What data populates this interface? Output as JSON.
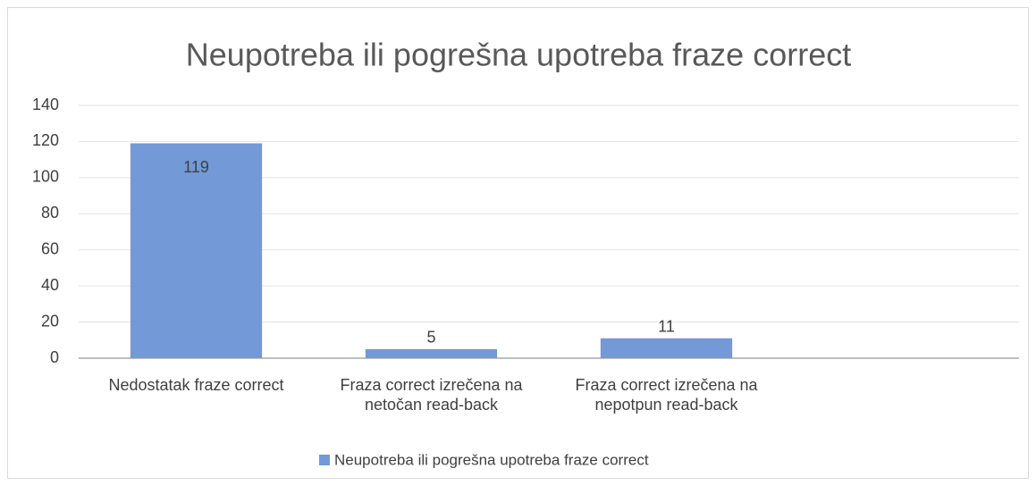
{
  "chart_data": {
    "type": "bar",
    "title": "Neupotreba ili pogrešna upotreba fraze correct",
    "categories": [
      "Nedostatak fraze correct",
      "Fraza correct izrečena na netočan read-back",
      "Fraza correct izrečena na nepotpun read-back",
      null
    ],
    "series": [
      {
        "name": "Neupotreba ili pogrešna upotreba fraze correct",
        "color": "#7399d6",
        "values": [
          119,
          5,
          11,
          null
        ]
      }
    ],
    "ylim": [
      0,
      140
    ],
    "yticks": [
      0,
      20,
      40,
      60,
      80,
      100,
      120,
      140
    ],
    "grid": true,
    "legend": "bottom"
  }
}
